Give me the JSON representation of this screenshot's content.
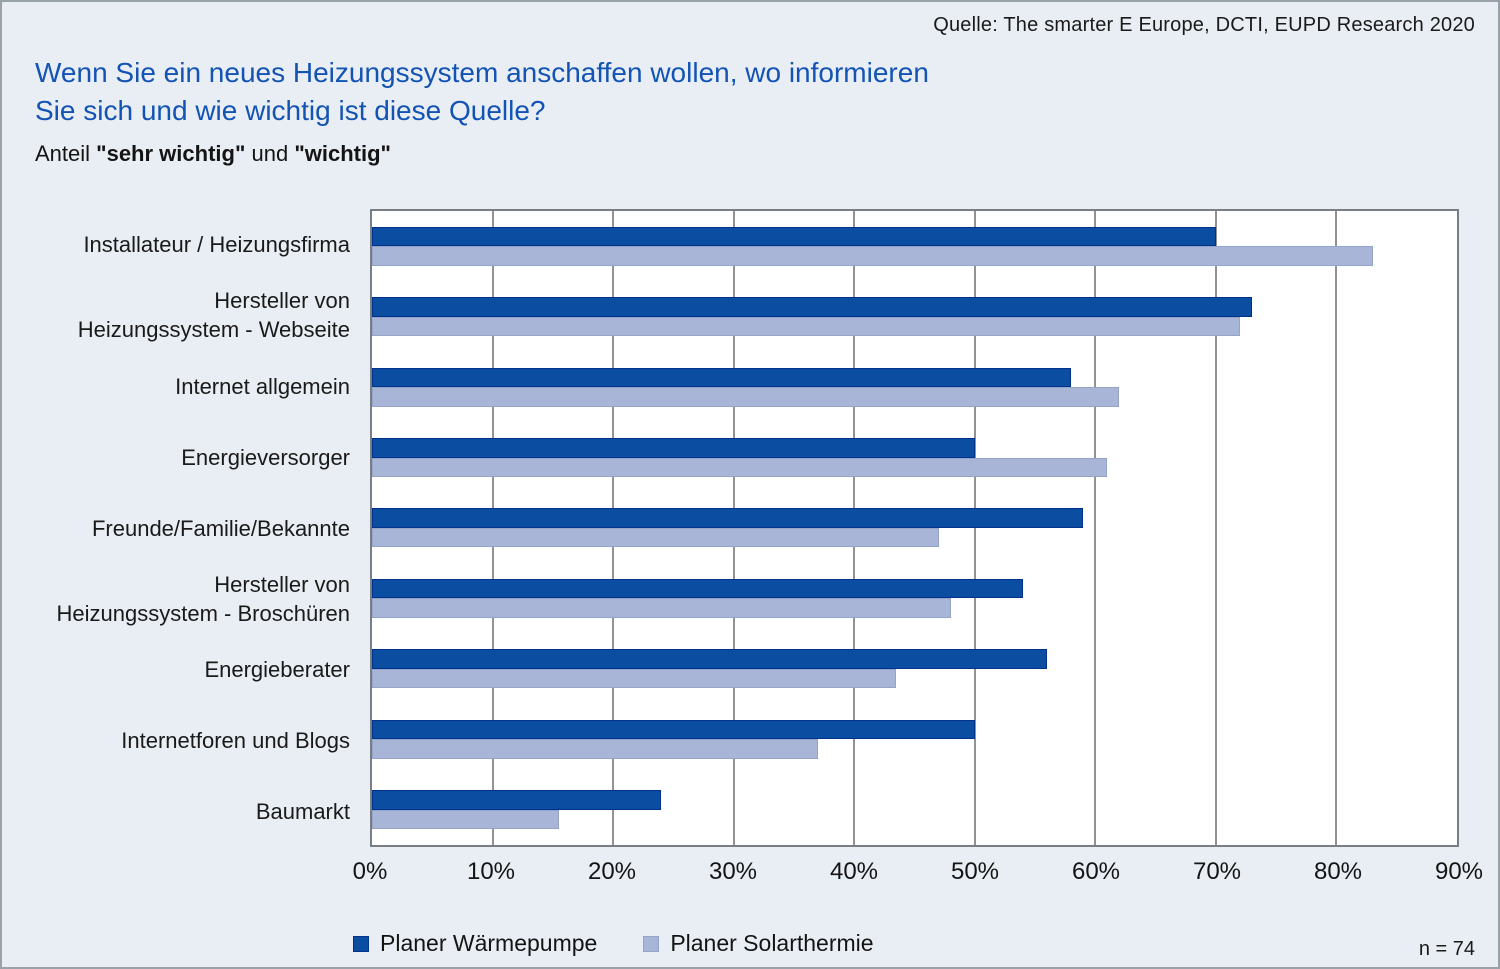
{
  "source": "Quelle: The smarter E Europe, DCTI, EUPD Research 2020",
  "title": {
    "line1": "Wenn Sie ein neues Heizungssystem anschaffen wollen, wo informieren",
    "line2": "Sie sich und wie wichtig ist diese Quelle?"
  },
  "subtitle": {
    "prefix": "Anteil ",
    "bold1": "\"sehr wichtig\"",
    "mid": " und ",
    "bold2": "\"wichtig\""
  },
  "footnote": "n = 74",
  "colors": {
    "background": "#e9eef4",
    "title_blue": "#1353b4",
    "bar_dark_blue": "#0a4da1",
    "bar_dark_border": "#00328a",
    "bar_light_blue": "#a9b5d7",
    "bar_light_border": "#93a3ca",
    "plot_border_gray": "#797e84",
    "gridline_gray": "#929292"
  },
  "chart_data": {
    "type": "bar",
    "orientation": "horizontal",
    "title": "Wenn Sie ein neues Heizungssystem anschaffen wollen, wo informieren Sie sich und wie wichtig ist diese Quelle?",
    "subtitle": "Anteil \"sehr wichtig\" und \"wichtig\"",
    "xlabel": "",
    "ylabel": "",
    "xlim": [
      0,
      90
    ],
    "x_ticks": [
      "0%",
      "10%",
      "20%",
      "30%",
      "40%",
      "50%",
      "60%",
      "70%",
      "80%",
      "90%"
    ],
    "grid": "vertical",
    "legend_position": "bottom",
    "sample_size": "n = 74",
    "categories": [
      "Installateur / Heizungsfirma",
      "Hersteller von\nHeizungssystem - Webseite",
      "Internet allgemein",
      "Energieversorger",
      "Freunde/Familie/Bekannte",
      "Hersteller von\nHeizungssystem - Broschüren",
      "Energieberater",
      "Internetforen und Blogs",
      "Baumarkt"
    ],
    "series": [
      {
        "name": "Planer Wärmepumpe",
        "color": "#0a4da1",
        "border": "#00328a",
        "values": [
          70,
          73,
          58,
          50,
          59,
          54,
          56,
          50,
          24
        ]
      },
      {
        "name": "Planer Solarthermie",
        "color": "#a9b5d7",
        "border": "#93a3ca",
        "values": [
          83,
          72,
          62,
          61,
          47,
          48,
          43.5,
          37,
          15.5
        ]
      }
    ]
  }
}
